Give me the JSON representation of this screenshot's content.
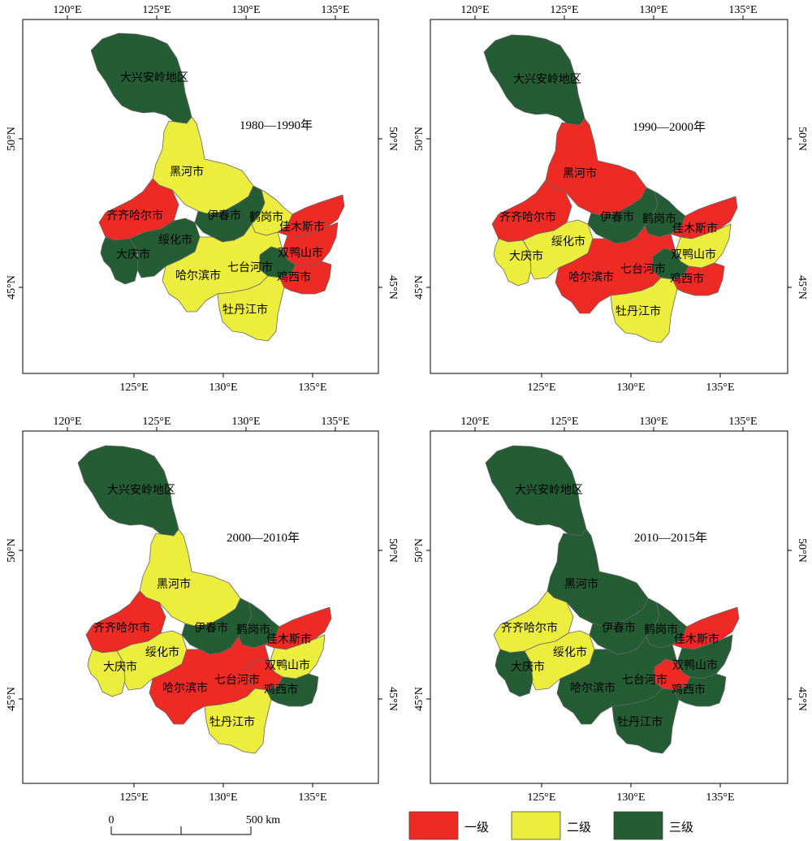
{
  "panels": [
    {
      "period": "1980—1990年",
      "top_ticks": [
        "120°E",
        "125°E",
        "130°E",
        "135°E"
      ],
      "bottom_ticks": [
        "125°E",
        "130°E",
        "135°E"
      ],
      "left_ticks": [
        "50°N",
        "45°N"
      ],
      "right_ticks": [
        "50°N",
        "45°N"
      ],
      "regions": [
        {
          "name": "大兴安岭地区",
          "grade": 3
        },
        {
          "name": "黑河市",
          "grade": 2
        },
        {
          "name": "齐齐哈尔市",
          "grade": 1
        },
        {
          "name": "伊春市",
          "grade": 3
        },
        {
          "name": "鹤岗市",
          "grade": 2
        },
        {
          "name": "佳木斯市",
          "grade": 1
        },
        {
          "name": "绥化市",
          "grade": 3
        },
        {
          "name": "大庆市",
          "grade": 3
        },
        {
          "name": "双鸭山市",
          "grade": 1
        },
        {
          "name": "哈尔滨市",
          "grade": 2
        },
        {
          "name": "七台河市",
          "grade": 3
        },
        {
          "name": "鸡西市",
          "grade": 1
        },
        {
          "name": "牡丹江市",
          "grade": 2
        }
      ]
    },
    {
      "period": "1990—2000年",
      "top_ticks": [
        "120°E",
        "125°E",
        "130°E",
        "135°E"
      ],
      "bottom_ticks": [
        "125°E",
        "130°E",
        "135°E"
      ],
      "left_ticks": [
        "50°N",
        "45°N"
      ],
      "right_ticks": [
        "50°N",
        "45°N"
      ],
      "regions": [
        {
          "name": "大兴安岭地区",
          "grade": 3
        },
        {
          "name": "黑河市",
          "grade": 1
        },
        {
          "name": "齐齐哈尔市",
          "grade": 1
        },
        {
          "name": "伊春市",
          "grade": 3
        },
        {
          "name": "鹤岗市",
          "grade": 3
        },
        {
          "name": "佳木斯市",
          "grade": 1
        },
        {
          "name": "绥化市",
          "grade": 2
        },
        {
          "name": "大庆市",
          "grade": 2
        },
        {
          "name": "双鸭山市",
          "grade": 2
        },
        {
          "name": "哈尔滨市",
          "grade": 1
        },
        {
          "name": "七台河市",
          "grade": 3
        },
        {
          "name": "鸡西市",
          "grade": 1
        },
        {
          "name": "牡丹江市",
          "grade": 2
        }
      ]
    },
    {
      "period": "2000—2010年",
      "top_ticks": [
        "120°E",
        "125°E",
        "130°E",
        "135°E"
      ],
      "bottom_ticks": [
        "125°E",
        "130°E",
        "135°E"
      ],
      "left_ticks": [
        "50°N",
        "45°N"
      ],
      "right_ticks": [
        "50°N",
        "45°N"
      ],
      "regions": [
        {
          "name": "大兴安岭地区",
          "grade": 3
        },
        {
          "name": "黑河市",
          "grade": 2
        },
        {
          "name": "齐齐哈尔市",
          "grade": 1
        },
        {
          "name": "伊春市",
          "grade": 3
        },
        {
          "name": "鹤岗市",
          "grade": 3
        },
        {
          "name": "佳木斯市",
          "grade": 1
        },
        {
          "name": "绥化市",
          "grade": 2
        },
        {
          "name": "大庆市",
          "grade": 2
        },
        {
          "name": "双鸭山市",
          "grade": 2
        },
        {
          "name": "哈尔滨市",
          "grade": 1
        },
        {
          "name": "七台河市",
          "grade": 1
        },
        {
          "name": "鸡西市",
          "grade": 3
        },
        {
          "name": "牡丹江市",
          "grade": 2
        }
      ]
    },
    {
      "period": "2010—2015年",
      "top_ticks": [
        "120°E",
        "125°E",
        "130°E",
        "135°E"
      ],
      "bottom_ticks": [
        "125°E",
        "130°E",
        "135°E"
      ],
      "left_ticks": [
        "50°N",
        "45°N"
      ],
      "right_ticks": [
        "50°N",
        "45°N"
      ],
      "regions": [
        {
          "name": "大兴安岭地区",
          "grade": 3
        },
        {
          "name": "黑河市",
          "grade": 3
        },
        {
          "name": "齐齐哈尔市",
          "grade": 2
        },
        {
          "name": "伊春市",
          "grade": 3
        },
        {
          "name": "鹤岗市",
          "grade": 3
        },
        {
          "name": "佳木斯市",
          "grade": 1
        },
        {
          "name": "绥化市",
          "grade": 2
        },
        {
          "name": "大庆市",
          "grade": 3
        },
        {
          "name": "双鸭山市",
          "grade": 3
        },
        {
          "name": "哈尔滨市",
          "grade": 3
        },
        {
          "name": "七台河市",
          "grade": 1
        },
        {
          "name": "鸡西市",
          "grade": 3
        },
        {
          "name": "牡丹江市",
          "grade": 3
        }
      ]
    }
  ],
  "legend": [
    {
      "grade": 1,
      "label": "一级",
      "color": "#ee2a24"
    },
    {
      "grade": 2,
      "label": "二级",
      "color": "#eced3c"
    },
    {
      "grade": 3,
      "label": "三级",
      "color": "#245c34"
    }
  ],
  "scale_bar": {
    "start_label": "0",
    "end_label": "500 km"
  },
  "colors": {
    "boundary": "#666666",
    "frame": "#000000"
  }
}
